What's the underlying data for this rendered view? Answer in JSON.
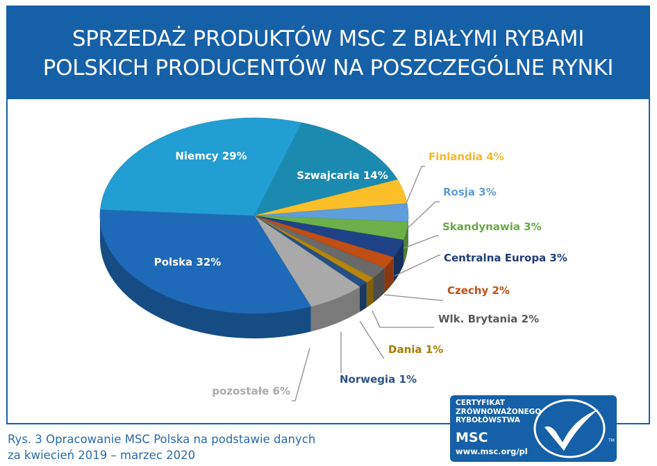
{
  "header": {
    "title_line1": "SPRZEDAŻ PRODUKTÓW MSC Z BIAŁYMI RYBAMI",
    "title_line2": "POLSKICH PRODUCENTÓW NA POSZCZEGÓLNE RYNKI"
  },
  "caption": {
    "line1": "Rys. 3 Opracowanie MSC Polska na podstawie danych",
    "line2": "za kwiecień 2019 – marzec 2020"
  },
  "badge": {
    "line1": "CERTYFIKAT",
    "line2": "ZRÓWNOWAŻONEGO",
    "line3": "RYBOŁÓWSTWA",
    "acronym": "MSC",
    "url": "www.msc.org/pl",
    "tm": "TM"
  },
  "chart_data": {
    "type": "pie",
    "title": "SPRZEDAŻ PRODUKTÓW MSC Z BIAŁYMI RYBAMI POLSKICH PRODUCENTÓW NA POSZCZEGÓLNE RYNKI",
    "slices": [
      {
        "label": "Szwajcaria 14%",
        "value": 14,
        "color": "#1a8ab0",
        "label_color": "#ffffff"
      },
      {
        "label": "Finlandia 4%",
        "value": 4,
        "color": "#fbbf2a",
        "label_color": "#f9b826"
      },
      {
        "label": "Rosja 3%",
        "value": 3,
        "color": "#5e9edb",
        "label_color": "#5d9bd6"
      },
      {
        "label": "Skandynawia 3%",
        "value": 3,
        "color": "#6bb04a",
        "label_color": "#66ab45"
      },
      {
        "label": "Centralna Europa 3%",
        "value": 3,
        "color": "#1f4286",
        "label_color": "#1f3c78"
      },
      {
        "label": "Czechy 2%",
        "value": 2,
        "color": "#c04e15",
        "label_color": "#c04f15"
      },
      {
        "label": "Wlk. Brytania 2%",
        "value": 2,
        "color": "#6a6a6a",
        "label_color": "#595959"
      },
      {
        "label": "Dania 1%",
        "value": 1,
        "color": "#b5850c",
        "label_color": "#a67c00"
      },
      {
        "label": "Norwegia 1%",
        "value": 1,
        "color": "#234f86",
        "label_color": "#2b5288"
      },
      {
        "label": "pozostałe  6%",
        "value": 6,
        "color": "#a9a9a9",
        "label_color": "#aaaaaa"
      },
      {
        "label": "Polska 32%",
        "value": 32,
        "color": "#1f6ab8",
        "label_color": "#ffffff"
      },
      {
        "label": "Niemcy 29%",
        "value": 29,
        "color": "#239ed2",
        "label_color": "#ffffff"
      }
    ],
    "colors": {
      "frame": "#1560a7",
      "title_text": "#ffffff",
      "caption_text": "#2a6aaa"
    }
  }
}
